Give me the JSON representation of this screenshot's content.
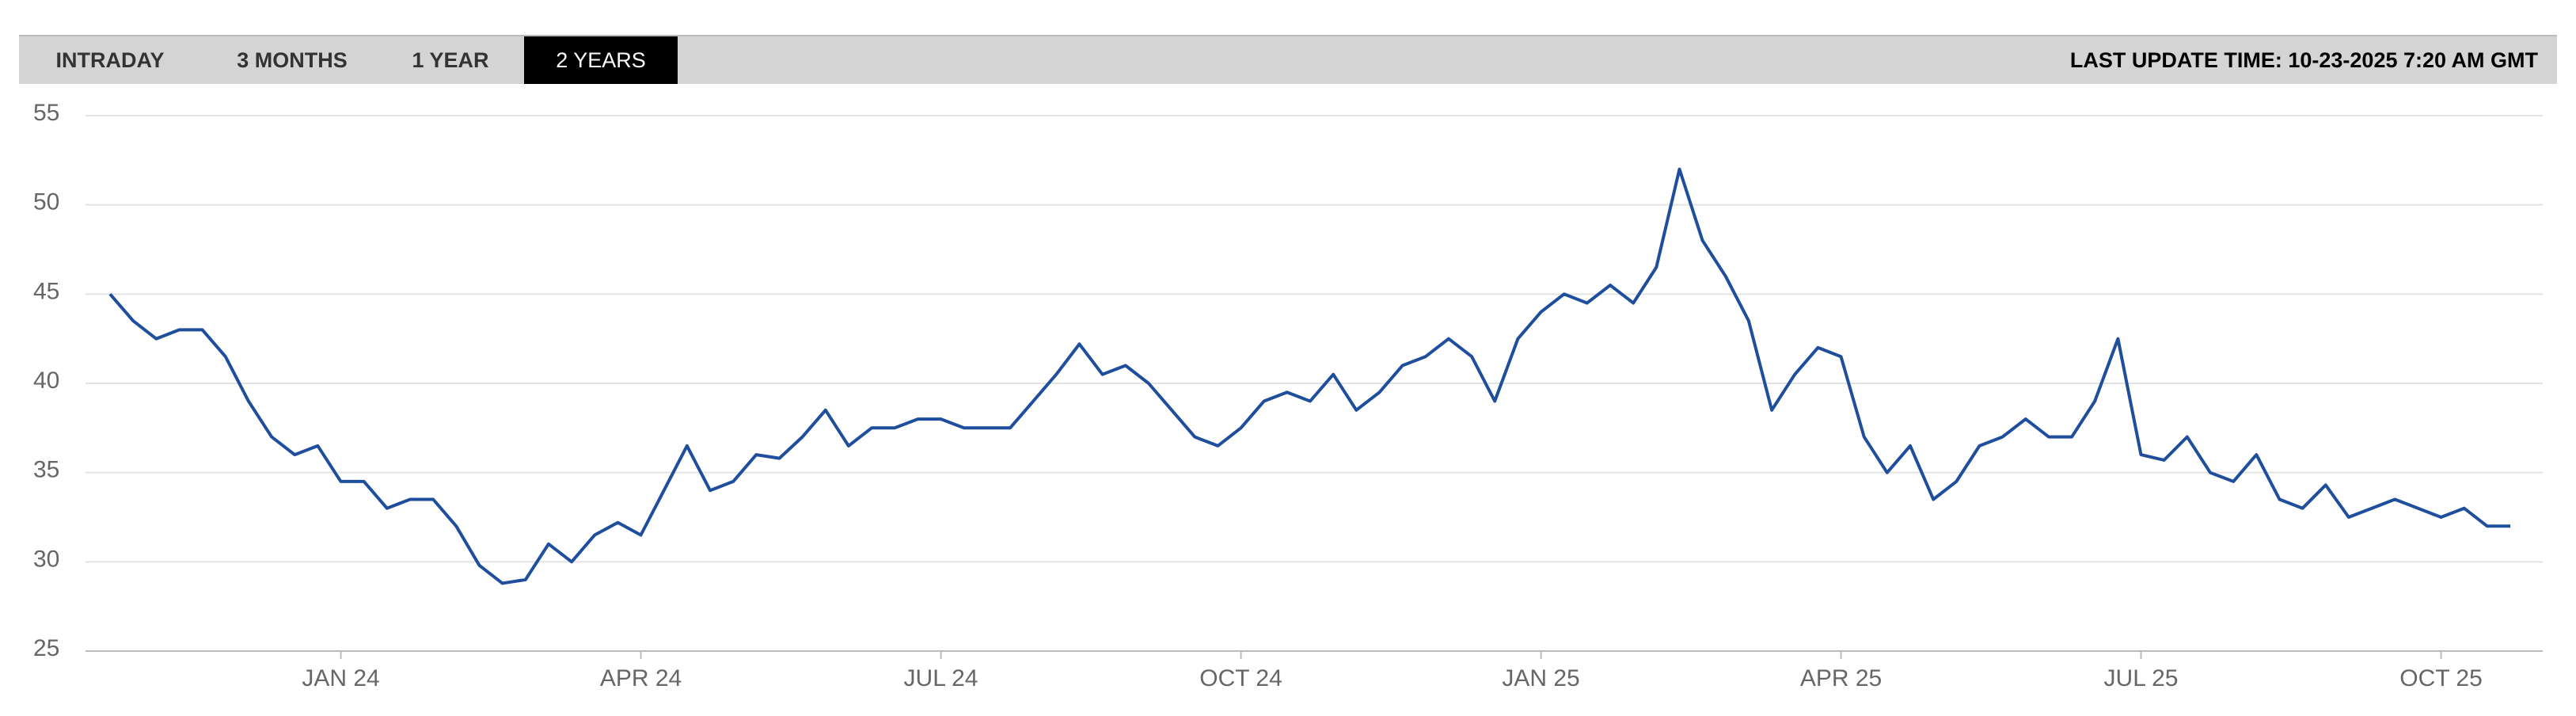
{
  "ui": {
    "tabs": [
      "INTRADAY",
      "3 MONTHS",
      "1 YEAR",
      "2 YEARS"
    ],
    "last_update": "LAST UPDATE TIME: 10-23-2025 7:20 AM GMT"
  },
  "chart_data": {
    "type": "line",
    "categories": [
      null,
      null,
      null,
      null,
      null,
      null,
      null,
      null,
      null,
      null,
      "JAN 24",
      null,
      null,
      null,
      null,
      null,
      null,
      null,
      null,
      null,
      null,
      null,
      null,
      "APR 24",
      null,
      null,
      null,
      null,
      null,
      null,
      null,
      null,
      null,
      null,
      null,
      null,
      "JUL 24",
      null,
      null,
      null,
      null,
      null,
      null,
      null,
      null,
      null,
      null,
      null,
      null,
      "OCT 24",
      null,
      null,
      null,
      null,
      null,
      null,
      null,
      null,
      null,
      null,
      null,
      null,
      "JAN 25",
      null,
      null,
      null,
      null,
      null,
      null,
      null,
      null,
      null,
      null,
      null,
      null,
      "APR 25",
      null,
      null,
      null,
      null,
      null,
      null,
      null,
      null,
      null,
      null,
      null,
      null,
      "JUL 25",
      null,
      null,
      null,
      null,
      null,
      null,
      null,
      null,
      null,
      null,
      null,
      null,
      "OCT 25",
      null,
      null,
      null
    ],
    "series": [
      {
        "color": "#1f4e9c",
        "values": [
          45,
          43.5,
          42.5,
          43,
          43,
          41.5,
          39,
          37,
          36,
          36.5,
          34.5,
          34.5,
          33,
          33.5,
          33.5,
          32,
          29.8,
          28.8,
          29,
          31,
          30,
          31.5,
          32.2,
          31.5,
          34,
          36.5,
          34,
          34.5,
          36,
          35.8,
          37,
          38.5,
          36.5,
          37.5,
          37.5,
          38,
          38,
          37.5,
          37.5,
          37.5,
          39,
          40.5,
          42.2,
          40.5,
          41,
          40,
          38.5,
          37,
          36.5,
          37.5,
          39,
          39.5,
          39,
          40.5,
          38.5,
          39.5,
          41,
          41.5,
          42.5,
          41.5,
          39,
          42.5,
          44,
          45,
          44.5,
          45.5,
          44.5,
          46.5,
          52,
          48,
          46,
          43.5,
          38.5,
          40.5,
          42,
          41.5,
          37,
          35,
          36.5,
          33.5,
          34.5,
          36.5,
          37,
          38,
          37,
          37,
          39,
          42.5,
          36,
          35.7,
          37,
          35,
          34.5,
          36,
          33.5,
          33,
          34.3,
          32.5,
          33,
          33.5,
          33,
          32.5,
          33,
          32,
          32
        ]
      }
    ],
    "ylim": [
      25,
      55
    ],
    "yticks": [
      25,
      30,
      35,
      40,
      45,
      50,
      55
    ],
    "grid": true
  }
}
